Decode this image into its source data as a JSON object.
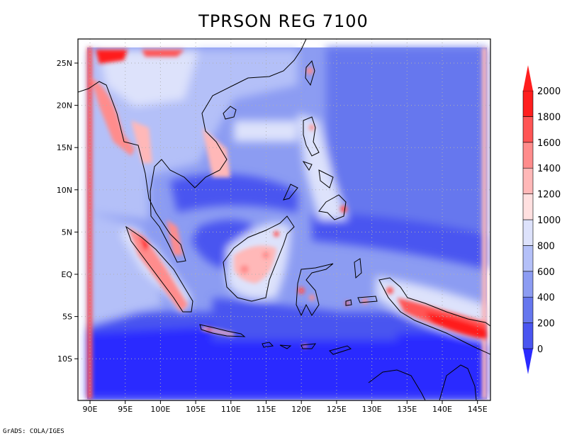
{
  "title": "TPRSON REG 7100",
  "credit": "GrADS: COLA/IGES",
  "x_ticks": [
    "90E",
    "95E",
    "100E",
    "105E",
    "110E",
    "115E",
    "120E",
    "125E",
    "130E",
    "135E",
    "140E",
    "145E"
  ],
  "y_ticks": [
    "25N",
    "20N",
    "15N",
    "10N",
    "5N",
    "EQ",
    "5S",
    "10S"
  ],
  "colorbar": {
    "levels": [
      "0",
      "200",
      "400",
      "600",
      "800",
      "1000",
      "1200",
      "1400",
      "1600",
      "1800",
      "2000"
    ],
    "colors": [
      "#2a2aff",
      "#4a55f0",
      "#6677ee",
      "#8c9cf2",
      "#b4c0f8",
      "#dde2fb",
      "#ffe0e0",
      "#ffb8b8",
      "#ff8c8c",
      "#ff5555",
      "#ff1e1e"
    ]
  }
}
